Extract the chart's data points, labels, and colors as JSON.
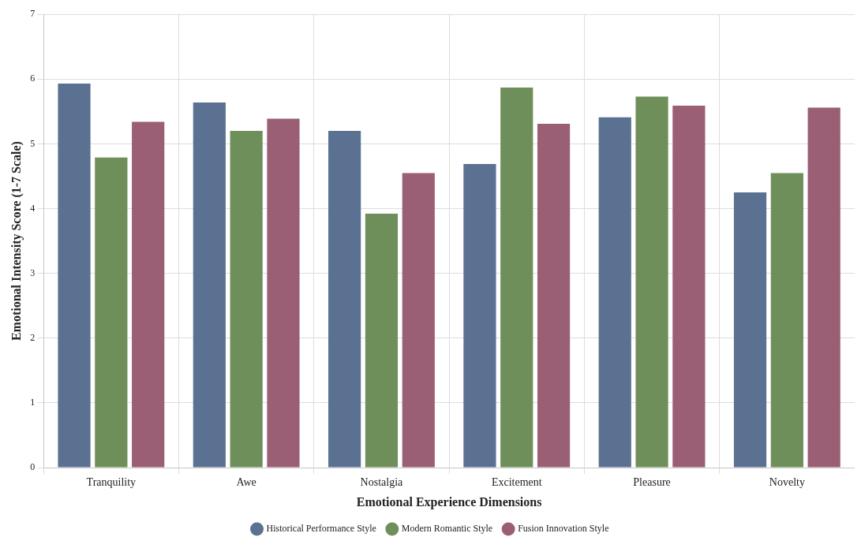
{
  "chart_data": {
    "type": "bar",
    "xlabel": "Emotional Experience Dimensions",
    "ylabel": "Emotional Intensity Score (1-7 Scale)",
    "categories": [
      "Tranquility",
      "Awe",
      "Nostalgia",
      "Excitement",
      "Pleasure",
      "Novelty"
    ],
    "series": [
      {
        "name": "Historical Performance Style",
        "color": "#5b7192",
        "values": [
          5.93,
          5.64,
          5.2,
          4.69,
          5.41,
          4.25
        ]
      },
      {
        "name": "Modern Romantic Style",
        "color": "#6f8f5a",
        "values": [
          4.79,
          5.2,
          3.92,
          5.87,
          5.73,
          4.55
        ]
      },
      {
        "name": "Fusion Innovation Style",
        "color": "#9a5f75",
        "values": [
          5.34,
          5.39,
          4.55,
          5.31,
          5.59,
          5.56
        ]
      }
    ],
    "ylim": [
      0,
      7
    ],
    "yticks": [
      0,
      1,
      2,
      3,
      4,
      5,
      6,
      7
    ],
    "grid": true,
    "legend": "bottom"
  }
}
